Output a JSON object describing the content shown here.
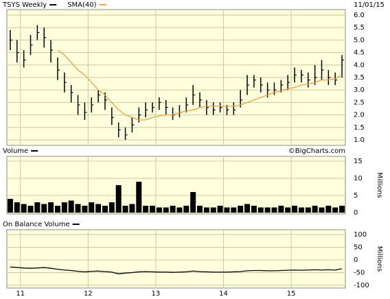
{
  "chart_data": [
    {
      "type": "ohlc",
      "date": "11/01/15",
      "x": [
        2010.85,
        2010.95,
        2011.05,
        2011.15,
        2011.25,
        2011.35,
        2011.45,
        2011.55,
        2011.65,
        2011.75,
        2011.85,
        2011.95,
        2012.05,
        2012.15,
        2012.25,
        2012.35,
        2012.45,
        2012.55,
        2012.65,
        2012.75,
        2012.85,
        2012.95,
        2013.05,
        2013.15,
        2013.25,
        2013.35,
        2013.45,
        2013.55,
        2013.65,
        2013.75,
        2013.85,
        2013.95,
        2014.05,
        2014.15,
        2014.25,
        2014.35,
        2014.45,
        2014.55,
        2014.65,
        2014.75,
        2014.85,
        2014.95,
        2015.05,
        2015.15,
        2015.25,
        2015.35,
        2015.45,
        2015.55,
        2015.65,
        2015.75
      ],
      "xlim": [
        2010.8,
        2015.8
      ],
      "series": [
        {
          "name": "TSYS Weekly",
          "color": "#000000",
          "values": [
            5.0,
            4.5,
            4.2,
            4.8,
            5.3,
            5.1,
            4.6,
            3.8,
            3.3,
            2.9,
            2.4,
            2.1,
            2.4,
            2.8,
            2.6,
            1.9,
            1.4,
            1.2,
            1.6,
            2.0,
            2.2,
            2.3,
            2.5,
            2.3,
            2.0,
            2.1,
            2.4,
            2.8,
            2.6,
            2.3,
            2.2,
            2.3,
            2.2,
            2.2,
            2.6,
            3.2,
            3.4,
            3.2,
            3.0,
            3.0,
            3.2,
            3.3,
            3.6,
            3.6,
            3.4,
            3.5,
            3.8,
            3.5,
            3.4,
            4.2
          ],
          "high": [
            5.4,
            5.0,
            4.6,
            5.2,
            5.6,
            5.5,
            5.0,
            4.3,
            3.7,
            3.2,
            2.8,
            2.5,
            2.7,
            3.0,
            2.9,
            2.3,
            1.7,
            1.5,
            1.9,
            2.3,
            2.5,
            2.5,
            2.7,
            2.6,
            2.3,
            2.4,
            2.7,
            3.2,
            2.9,
            2.6,
            2.5,
            2.5,
            2.4,
            2.5,
            3.0,
            3.6,
            3.6,
            3.5,
            3.3,
            3.3,
            3.4,
            3.6,
            3.9,
            3.8,
            3.7,
            4.0,
            4.2,
            3.8,
            3.7,
            4.4
          ],
          "low": [
            4.6,
            4.1,
            3.9,
            4.4,
            5.0,
            4.7,
            4.1,
            3.4,
            2.9,
            2.5,
            2.0,
            1.8,
            2.1,
            2.5,
            2.2,
            1.6,
            1.1,
            1.0,
            1.3,
            1.7,
            1.9,
            2.1,
            2.2,
            2.0,
            1.8,
            1.9,
            2.1,
            2.4,
            2.3,
            2.0,
            2.0,
            2.1,
            2.0,
            2.0,
            2.3,
            2.8,
            3.1,
            2.9,
            2.7,
            2.8,
            2.9,
            3.0,
            3.3,
            3.3,
            3.1,
            3.2,
            3.4,
            3.2,
            3.2,
            3.5
          ]
        },
        {
          "name": "SMA(40)",
          "color": "#e8a33c",
          "values": [
            null,
            null,
            null,
            null,
            null,
            null,
            null,
            4.6,
            4.4,
            4.1,
            3.8,
            3.6,
            3.3,
            3.0,
            2.8,
            2.5,
            2.2,
            2.0,
            1.9,
            1.8,
            1.8,
            1.9,
            1.95,
            2.0,
            2.0,
            2.1,
            2.15,
            2.2,
            2.3,
            2.35,
            2.35,
            2.35,
            2.35,
            2.35,
            2.4,
            2.5,
            2.6,
            2.7,
            2.8,
            2.9,
            2.95,
            3.05,
            3.1,
            3.2,
            3.25,
            3.3,
            3.4,
            3.4,
            3.45,
            3.6
          ]
        }
      ],
      "ylim": [
        0.78,
        6.22
      ],
      "yticks": [
        {
          "value": 1,
          "label": "1.0"
        },
        {
          "value": 1.5,
          "label": "1.5"
        },
        {
          "value": 2,
          "label": "2.0"
        },
        {
          "value": 2.5,
          "label": "2.5"
        },
        {
          "value": 3,
          "label": "3.0"
        },
        {
          "value": 3.5,
          "label": "3.5"
        },
        {
          "value": 4,
          "label": "4.0"
        },
        {
          "value": 4.5,
          "label": "4.5"
        },
        {
          "value": 5,
          "label": "5.0"
        },
        {
          "value": 5.5,
          "label": "5.5"
        },
        {
          "value": 6,
          "label": "6.0"
        }
      ]
    },
    {
      "type": "bar",
      "credit": "©BigCharts.com",
      "ylabel": "Millions",
      "x": [
        2010.85,
        2010.95,
        2011.05,
        2011.15,
        2011.25,
        2011.35,
        2011.45,
        2011.55,
        2011.65,
        2011.75,
        2011.85,
        2011.95,
        2012.05,
        2012.15,
        2012.25,
        2012.35,
        2012.45,
        2012.55,
        2012.65,
        2012.75,
        2012.85,
        2012.95,
        2013.05,
        2013.15,
        2013.25,
        2013.35,
        2013.45,
        2013.55,
        2013.65,
        2013.75,
        2013.85,
        2013.95,
        2014.05,
        2014.15,
        2014.25,
        2014.35,
        2014.45,
        2014.55,
        2014.65,
        2014.75,
        2014.85,
        2014.95,
        2015.05,
        2015.15,
        2015.25,
        2015.35,
        2015.45,
        2015.55,
        2015.65,
        2015.75
      ],
      "xlim": [
        2010.8,
        2015.8
      ],
      "series": [
        {
          "name": "Volume",
          "color": "#000000",
          "values": [
            4,
            3,
            2.5,
            2,
            3,
            2.5,
            3,
            2,
            3,
            3.5,
            2.5,
            2,
            3,
            2.5,
            2,
            3,
            8,
            2,
            2.5,
            9,
            2,
            2,
            1.5,
            1.5,
            2,
            1.5,
            2,
            6,
            2,
            1.5,
            1.5,
            2,
            1.5,
            1.5,
            2,
            2.5,
            2,
            1.5,
            1.5,
            1.5,
            2,
            1.5,
            2,
            1.5,
            1.5,
            2,
            1.5,
            2,
            1.5,
            2
          ]
        }
      ],
      "ylim": [
        -0.4,
        16.4
      ],
      "yticks": [
        0,
        5,
        10,
        15
      ]
    },
    {
      "type": "line",
      "ylabel": "Millions",
      "x": [
        2010.85,
        2010.95,
        2011.05,
        2011.15,
        2011.25,
        2011.35,
        2011.45,
        2011.55,
        2011.65,
        2011.75,
        2011.85,
        2011.95,
        2012.05,
        2012.15,
        2012.25,
        2012.35,
        2012.45,
        2012.55,
        2012.65,
        2012.75,
        2012.85,
        2012.95,
        2013.05,
        2013.15,
        2013.25,
        2013.35,
        2013.45,
        2013.55,
        2013.65,
        2013.75,
        2013.85,
        2013.95,
        2014.05,
        2014.15,
        2014.25,
        2014.35,
        2014.45,
        2014.55,
        2014.65,
        2014.75,
        2014.85,
        2014.95,
        2015.05,
        2015.15,
        2015.25,
        2015.35,
        2015.45,
        2015.55,
        2015.65,
        2015.75
      ],
      "xlim": [
        2010.8,
        2015.8
      ],
      "series": [
        {
          "name": "On Balance Volume",
          "color": "#000000",
          "values": [
            -28,
            -30,
            -32,
            -33,
            -32,
            -30,
            -33,
            -37,
            -40,
            -42,
            -45,
            -47,
            -45,
            -44,
            -46,
            -48,
            -55,
            -52,
            -50,
            -47,
            -46,
            -47,
            -48,
            -48,
            -49,
            -48,
            -47,
            -44,
            -46,
            -47,
            -48,
            -48,
            -48,
            -47,
            -46,
            -43,
            -42,
            -42,
            -43,
            -43,
            -42,
            -41,
            -40,
            -41,
            -40,
            -39,
            -40,
            -39,
            -40,
            -35
          ]
        }
      ],
      "ylim": [
        -111,
        119
      ],
      "yticks": [
        -100,
        -50,
        0,
        50,
        100
      ],
      "xticks": [
        {
          "value": 2011,
          "label": "11"
        },
        {
          "value": 2012,
          "label": "12"
        },
        {
          "value": 2013,
          "label": "13"
        },
        {
          "value": 2014,
          "label": "14"
        },
        {
          "value": 2015,
          "label": "15"
        }
      ]
    }
  ]
}
